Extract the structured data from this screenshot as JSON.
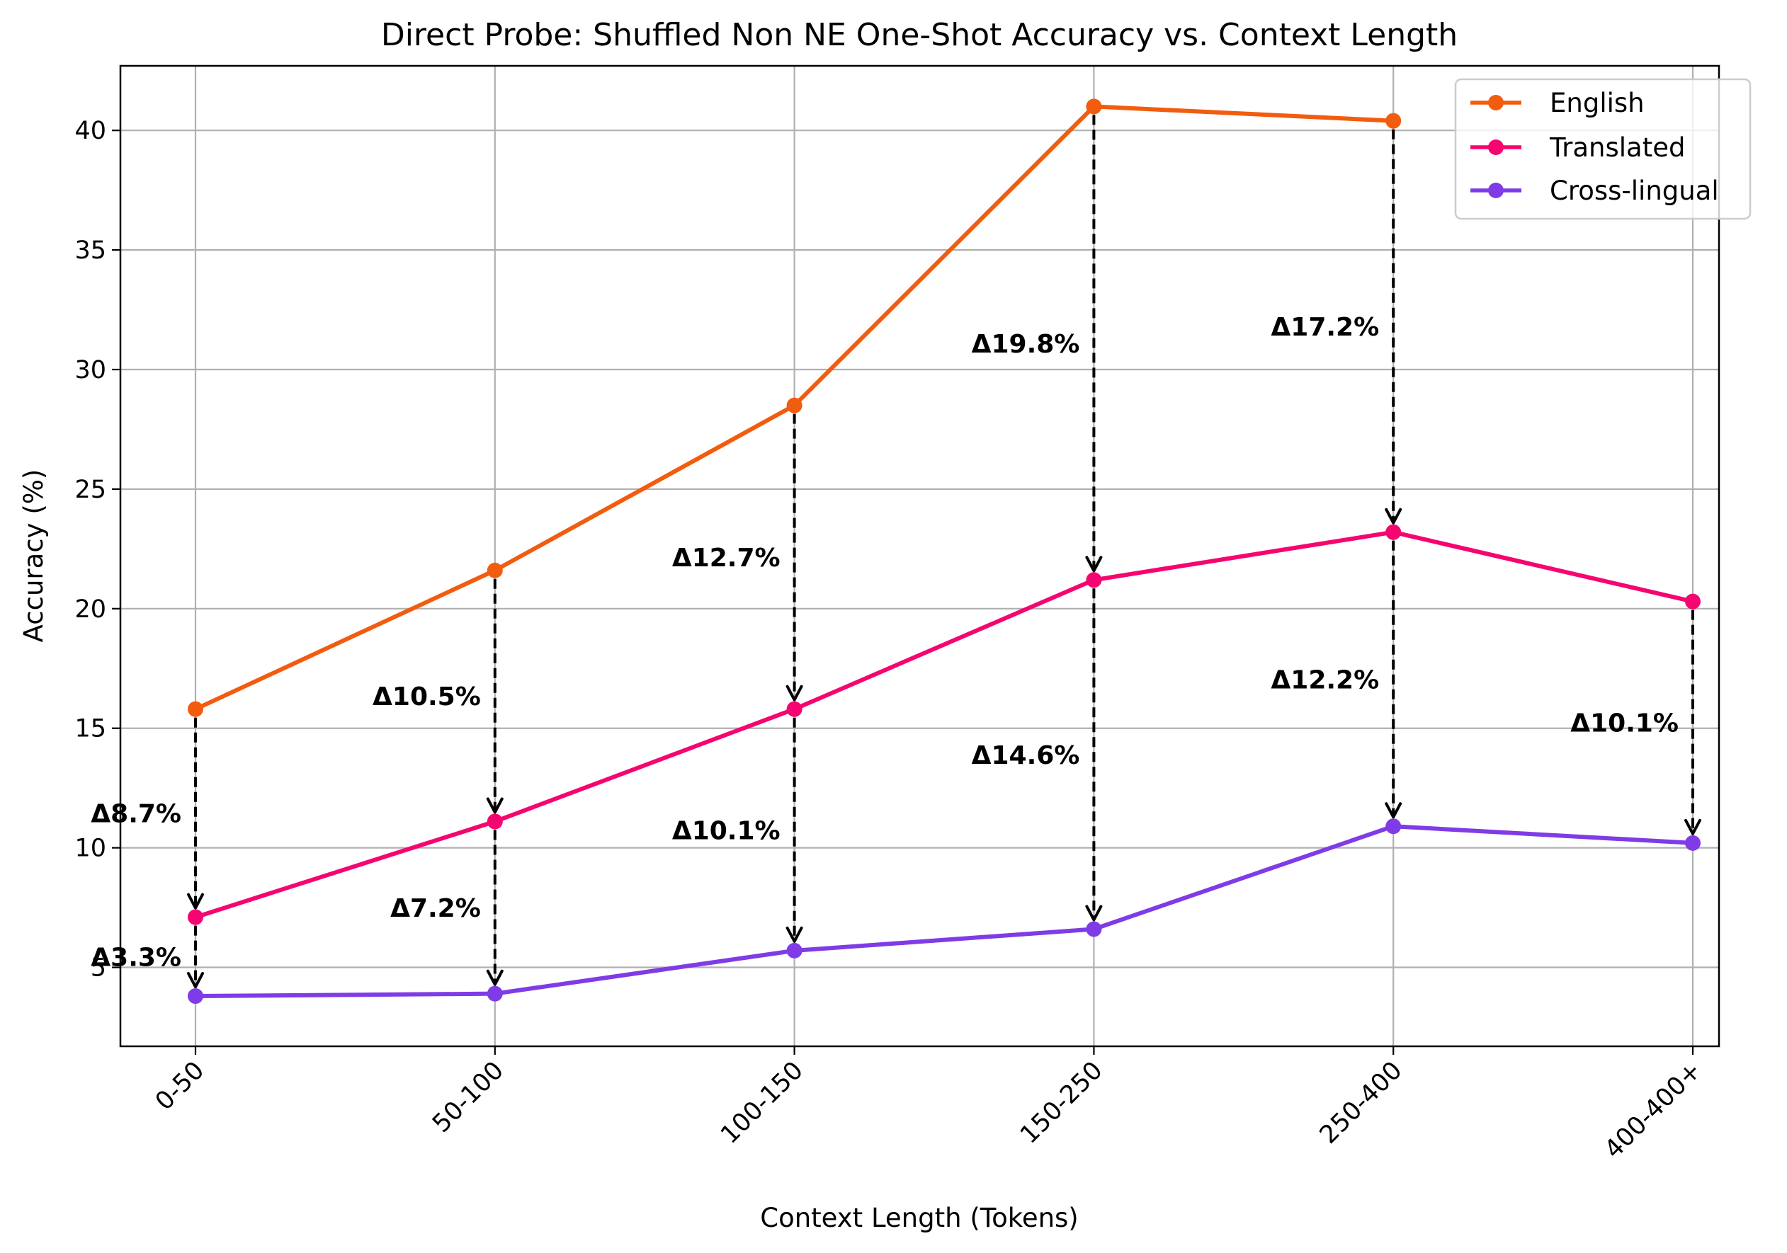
{
  "chart_data": {
    "type": "line",
    "title": "Direct Probe: Shuffled Non NE One-Shot Accuracy vs. Context Length",
    "xlabel": "Context Length (Tokens)",
    "ylabel": "Accuracy (%)",
    "categories": [
      "0-50",
      "50-100",
      "100-150",
      "150-250",
      "250-400",
      "400-400+"
    ],
    "ylim": [
      1.7,
      42.7
    ],
    "yticks": [
      5,
      10,
      15,
      20,
      25,
      30,
      35,
      40
    ],
    "grid": true,
    "legend_position": "top-right",
    "series": [
      {
        "name": "English",
        "color": "#f25c0f",
        "values": [
          15.8,
          21.6,
          28.5,
          41.0,
          40.4,
          null
        ]
      },
      {
        "name": "Translated",
        "color": "#f5056f",
        "values": [
          7.1,
          11.1,
          15.8,
          21.2,
          23.2,
          20.3
        ]
      },
      {
        "name": "Cross-lingual",
        "color": "#7f3ce6",
        "values": [
          3.8,
          3.9,
          5.7,
          6.6,
          10.9,
          10.2
        ]
      }
    ],
    "annotations": [
      {
        "category": "0-50",
        "from": 15.8,
        "to": 7.1,
        "text": "Δ8.7%"
      },
      {
        "category": "0-50",
        "from": 7.1,
        "to": 3.8,
        "text": "Δ3.3%"
      },
      {
        "category": "50-100",
        "from": 21.6,
        "to": 11.1,
        "text": "Δ10.5%"
      },
      {
        "category": "50-100",
        "from": 11.1,
        "to": 3.9,
        "text": "Δ7.2%"
      },
      {
        "category": "100-150",
        "from": 28.5,
        "to": 15.8,
        "text": "Δ12.7%"
      },
      {
        "category": "100-150",
        "from": 15.8,
        "to": 5.7,
        "text": "Δ10.1%"
      },
      {
        "category": "150-250",
        "from": 41.0,
        "to": 21.2,
        "text": "Δ19.8%"
      },
      {
        "category": "150-250",
        "from": 21.2,
        "to": 6.6,
        "text": "Δ14.6%"
      },
      {
        "category": "250-400",
        "from": 40.4,
        "to": 23.2,
        "text": "Δ17.2%"
      },
      {
        "category": "250-400",
        "from": 23.2,
        "to": 10.9,
        "text": "Δ12.2%"
      },
      {
        "category": "400-400+",
        "from": 20.3,
        "to": 10.2,
        "text": "Δ10.1%"
      }
    ]
  }
}
